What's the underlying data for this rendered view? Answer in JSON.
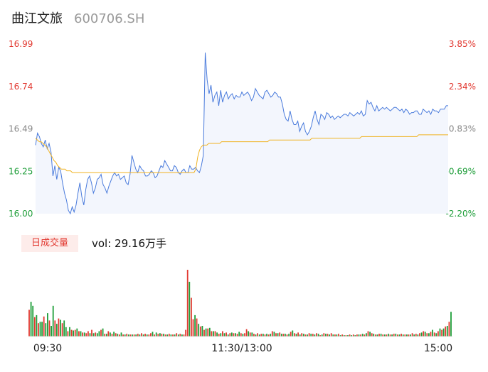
{
  "stock": {
    "name": "曲江文旅",
    "code": "600706.SH"
  },
  "volume_panel": {
    "tab_label": "日成交量",
    "vol_text": "vol: 29.16万手"
  },
  "colors": {
    "up": "#e23a32",
    "down": "#1f9e3a",
    "price_line": "#4a7bdc",
    "avg_line": "#f0b323",
    "area": "#f3f6fd"
  },
  "chart_data": [
    {
      "type": "line",
      "title": "",
      "y_ticks_left": [
        "16.99",
        "16.74",
        "16.49",
        "16.25",
        "16.00"
      ],
      "y_ticks_right": [
        "3.85%",
        "2.34%",
        "0.83%",
        "-0.69%",
        "-2.20%"
      ],
      "ylim": [
        16.0,
        16.99
      ],
      "x_ticks": [
        "09:30",
        "11:30/13:00",
        "15:00"
      ],
      "series": [
        {
          "role": "price",
          "values": [
            16.4,
            16.47,
            16.45,
            16.41,
            16.39,
            16.43,
            16.38,
            16.41,
            16.36,
            16.22,
            16.28,
            16.2,
            16.27,
            16.25,
            16.18,
            16.12,
            16.08,
            16.02,
            16.0,
            16.04,
            16.01,
            16.05,
            16.12,
            16.18,
            16.1,
            16.05,
            16.14,
            16.2,
            16.22,
            16.18,
            16.12,
            16.15,
            16.2,
            16.21,
            16.23,
            16.17,
            16.15,
            16.12,
            16.16,
            16.19,
            16.22,
            16.24,
            16.22,
            16.23,
            16.2,
            16.21,
            16.22,
            16.18,
            16.17,
            16.23,
            16.34,
            16.3,
            16.26,
            16.24,
            16.28,
            16.26,
            16.25,
            16.22,
            16.22,
            16.23,
            16.25,
            16.24,
            16.21,
            16.22,
            16.25,
            16.28,
            16.27,
            16.31,
            16.29,
            16.27,
            16.25,
            16.25,
            16.28,
            16.27,
            16.24,
            16.23,
            16.25,
            16.26,
            16.24,
            16.24,
            16.28,
            16.26,
            16.26,
            16.27,
            16.25,
            16.24,
            16.28,
            16.34,
            16.94,
            16.78,
            16.7,
            16.75,
            16.65,
            16.69,
            16.71,
            16.63,
            16.72,
            16.65,
            16.69,
            16.71,
            16.67,
            16.69,
            16.7,
            16.67,
            16.69,
            16.68,
            16.68,
            16.71,
            16.69,
            16.7,
            16.71,
            16.69,
            16.66,
            16.68,
            16.73,
            16.71,
            16.69,
            16.68,
            16.67,
            16.71,
            16.72,
            16.7,
            16.68,
            16.69,
            16.71,
            16.7,
            16.68,
            16.68,
            16.64,
            16.58,
            16.55,
            16.54,
            16.6,
            16.55,
            16.52,
            16.52,
            16.54,
            16.48,
            16.51,
            16.53,
            16.48,
            16.46,
            16.48,
            16.51,
            16.56,
            16.6,
            16.55,
            16.52,
            16.58,
            16.57,
            16.55,
            16.59,
            16.58,
            16.56,
            16.57,
            16.55,
            16.56,
            16.57,
            16.56,
            16.57,
            16.58,
            16.58,
            16.57,
            16.59,
            16.58,
            16.57,
            16.58,
            16.59,
            16.58,
            16.6,
            16.57,
            16.58,
            16.66,
            16.64,
            16.65,
            16.62,
            16.6,
            16.63,
            16.6,
            16.61,
            16.62,
            16.61,
            16.62,
            16.61,
            16.6,
            16.61,
            16.62,
            16.62,
            16.61,
            16.6,
            16.61,
            16.59,
            16.61,
            16.6,
            16.58,
            16.59,
            16.59,
            16.6,
            16.6,
            16.58,
            16.58,
            16.61,
            16.6,
            16.59,
            16.6,
            16.58,
            16.61,
            16.6,
            16.6,
            16.59,
            16.61,
            16.61,
            16.61,
            16.63,
            16.63
          ]
        },
        {
          "role": "average",
          "values": [
            16.44,
            16.43,
            16.42,
            16.42,
            16.41,
            16.4,
            16.39,
            16.37,
            16.35,
            16.33,
            16.31,
            16.3,
            16.28,
            16.27,
            16.26,
            16.26,
            16.26,
            16.25,
            16.25,
            16.25,
            16.24,
            16.24,
            16.24,
            16.24,
            16.24,
            16.24,
            16.24,
            16.24,
            16.24,
            16.24,
            16.24,
            16.24,
            16.24,
            16.24,
            16.24,
            16.24,
            16.24,
            16.24,
            16.24,
            16.24,
            16.24,
            16.24,
            16.24,
            16.24,
            16.24,
            16.24,
            16.24,
            16.24,
            16.24,
            16.24,
            16.24,
            16.24,
            16.24,
            16.24,
            16.24,
            16.24,
            16.24,
            16.24,
            16.24,
            16.24,
            16.24,
            16.24,
            16.24,
            16.24,
            16.24,
            16.24,
            16.24,
            16.24,
            16.24,
            16.24,
            16.24,
            16.24,
            16.24,
            16.24,
            16.24,
            16.24,
            16.24,
            16.24,
            16.24,
            16.24,
            16.24,
            16.24,
            16.24,
            16.24,
            16.24,
            16.24,
            16.24,
            16.26,
            16.33,
            16.37,
            16.39,
            16.4,
            16.4,
            16.4,
            16.41,
            16.41,
            16.41,
            16.41,
            16.41,
            16.41,
            16.41,
            16.42,
            16.42,
            16.42,
            16.42,
            16.42,
            16.42,
            16.42,
            16.42,
            16.42,
            16.42,
            16.42,
            16.42,
            16.42,
            16.42,
            16.42,
            16.42,
            16.42,
            16.42,
            16.42,
            16.42,
            16.42,
            16.42,
            16.42,
            16.42,
            16.42,
            16.42,
            16.43,
            16.43,
            16.43,
            16.43,
            16.43,
            16.43,
            16.43,
            16.43,
            16.43,
            16.43,
            16.43,
            16.43,
            16.43,
            16.43,
            16.43,
            16.43,
            16.43,
            16.43,
            16.43,
            16.43,
            16.43,
            16.43,
            16.43,
            16.44,
            16.44,
            16.44,
            16.44,
            16.44,
            16.44,
            16.44,
            16.44,
            16.44,
            16.44,
            16.44,
            16.44,
            16.44,
            16.44,
            16.44,
            16.44,
            16.44,
            16.44,
            16.44,
            16.44,
            16.44,
            16.44,
            16.44,
            16.44,
            16.44,
            16.44,
            16.44,
            16.45,
            16.45,
            16.45,
            16.45,
            16.45,
            16.45,
            16.45,
            16.45,
            16.45,
            16.45,
            16.45,
            16.45,
            16.45,
            16.45,
            16.45,
            16.45,
            16.45,
            16.45,
            16.45,
            16.45,
            16.45,
            16.45,
            16.45,
            16.45,
            16.45,
            16.45,
            16.45,
            16.45,
            16.45,
            16.45,
            16.45,
            16.46,
            16.46,
            16.46,
            16.46,
            16.46,
            16.46,
            16.46,
            16.46,
            16.46,
            16.46,
            16.46,
            16.46,
            16.46,
            16.46,
            16.46,
            16.46,
            16.46
          ]
        }
      ]
    },
    {
      "type": "bar",
      "title": "",
      "ylim": [
        0,
        100
      ],
      "x_ticks": [
        "09:30",
        "11:30/13:00",
        "15:00"
      ],
      "values": [
        40,
        52,
        46,
        29,
        32,
        20,
        22,
        22,
        30,
        20,
        35,
        24,
        16,
        46,
        24,
        19,
        27,
        25,
        20,
        24,
        14,
        8,
        14,
        10,
        9,
        10,
        12,
        8,
        8,
        6,
        6,
        5,
        8,
        5,
        10,
        5,
        6,
        5,
        8,
        10,
        12,
        4,
        4,
        8,
        6,
        4,
        7,
        5,
        4,
        3,
        6,
        3,
        3,
        4,
        3,
        3,
        3,
        3,
        3,
        4,
        3,
        5,
        3,
        4,
        3,
        3,
        5,
        7,
        3,
        6,
        4,
        5,
        4,
        4,
        3,
        3,
        4,
        3,
        3,
        3,
        5,
        3,
        4,
        3,
        3,
        10,
        100,
        82,
        58,
        26,
        32,
        27,
        19,
        15,
        16,
        10,
        12,
        12,
        13,
        8,
        8,
        8,
        6,
        4,
        5,
        8,
        5,
        6,
        3,
        5,
        6,
        5,
        5,
        4,
        7,
        5,
        4,
        5,
        11,
        8,
        6,
        6,
        4,
        3,
        5,
        3,
        4,
        4,
        3,
        4,
        3,
        4,
        8,
        7,
        5,
        5,
        6,
        4,
        4,
        4,
        3,
        4,
        7,
        9,
        5,
        4,
        6,
        3,
        5,
        4,
        3,
        3,
        5,
        4,
        4,
        3,
        5,
        4,
        2,
        3,
        5,
        4,
        4,
        3,
        5,
        3,
        3,
        3,
        4,
        2,
        3,
        2,
        2,
        2,
        3,
        2,
        3,
        2,
        3,
        3,
        3,
        4,
        3,
        5,
        8,
        7,
        5,
        4,
        3,
        3,
        4,
        4,
        3,
        3,
        3,
        4,
        3,
        3,
        4,
        4,
        3,
        3,
        4,
        3,
        3,
        3,
        3,
        3,
        5,
        3,
        4,
        3,
        5,
        6,
        8,
        7,
        5,
        5,
        7,
        10,
        6,
        5,
        8,
        12,
        10,
        12,
        15,
        16,
        22,
        37
      ],
      "colors": [
        "up",
        "down",
        "down",
        "up",
        "down",
        "up",
        "down",
        "down",
        "up",
        "down",
        "down",
        "up",
        "down",
        "down",
        "up",
        "down",
        "up",
        "down",
        "up",
        "down",
        "down",
        "up",
        "down",
        "up",
        "down",
        "up",
        "down",
        "up",
        "down",
        "up",
        "down",
        "up",
        "up",
        "down",
        "up",
        "down",
        "up",
        "down",
        "down",
        "up",
        "down",
        "up",
        "down",
        "up",
        "down",
        "up",
        "down",
        "up",
        "down",
        "up",
        "down",
        "up",
        "down",
        "up",
        "down",
        "up",
        "down",
        "up",
        "down",
        "up",
        "down",
        "up",
        "down",
        "up",
        "down",
        "up",
        "up",
        "down",
        "up",
        "down",
        "up",
        "down",
        "up",
        "down",
        "up",
        "down",
        "up",
        "down",
        "up",
        "down",
        "up",
        "down",
        "up",
        "down",
        "up",
        "up",
        "up",
        "down",
        "up",
        "up",
        "down",
        "up",
        "down",
        "up",
        "down",
        "up",
        "down",
        "up",
        "down",
        "up",
        "down",
        "up",
        "down",
        "up",
        "down",
        "up",
        "down",
        "up",
        "down",
        "up",
        "down",
        "up",
        "down",
        "up",
        "down",
        "up",
        "down",
        "up",
        "up",
        "down",
        "up",
        "down",
        "up",
        "down",
        "up",
        "down",
        "up",
        "down",
        "up",
        "down",
        "up",
        "down",
        "up",
        "down",
        "up",
        "down",
        "up",
        "down",
        "up",
        "down",
        "up",
        "down",
        "up",
        "down",
        "up",
        "down",
        "up",
        "down",
        "up",
        "down",
        "up",
        "down",
        "up",
        "down",
        "up",
        "down",
        "up",
        "down",
        "up",
        "down",
        "up",
        "down",
        "up",
        "down",
        "up",
        "down",
        "up",
        "down",
        "up",
        "down",
        "up",
        "down",
        "up",
        "down",
        "up",
        "down",
        "up",
        "down",
        "up",
        "down",
        "up",
        "down",
        "up",
        "down",
        "up",
        "down",
        "up",
        "down",
        "up",
        "down",
        "up",
        "down",
        "up",
        "down",
        "up",
        "down",
        "up",
        "down",
        "up",
        "down",
        "up",
        "down",
        "up",
        "down",
        "up",
        "down",
        "up",
        "down",
        "up",
        "down",
        "up",
        "down",
        "up",
        "down",
        "up",
        "down",
        "up",
        "down",
        "up",
        "down",
        "up",
        "down",
        "up",
        "down",
        "up",
        "down",
        "up",
        "down",
        "up",
        "down",
        "up",
        "down",
        "up",
        "down",
        "up",
        "up",
        "up",
        "up",
        "up"
      ]
    }
  ]
}
